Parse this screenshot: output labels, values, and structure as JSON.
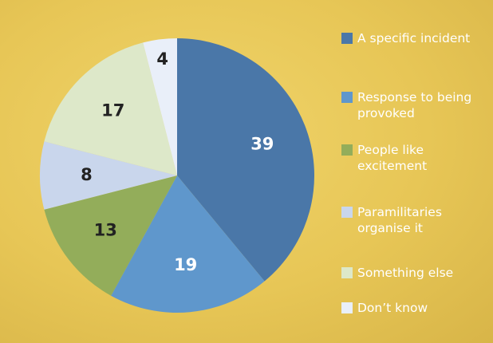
{
  "chart_data": {
    "type": "pie",
    "categories": [
      "A specific incident",
      "Response to being provoked",
      "People like excitement",
      "Paramilitaries organise it",
      "Something else",
      "Don’t know"
    ],
    "values": [
      39,
      19,
      13,
      8,
      17,
      4
    ],
    "colors": [
      "#4a77a8",
      "#5f97cc",
      "#93ad5a",
      "#c9d6ec",
      "#dde8c9",
      "#e9eff9"
    ],
    "legend": "right"
  }
}
